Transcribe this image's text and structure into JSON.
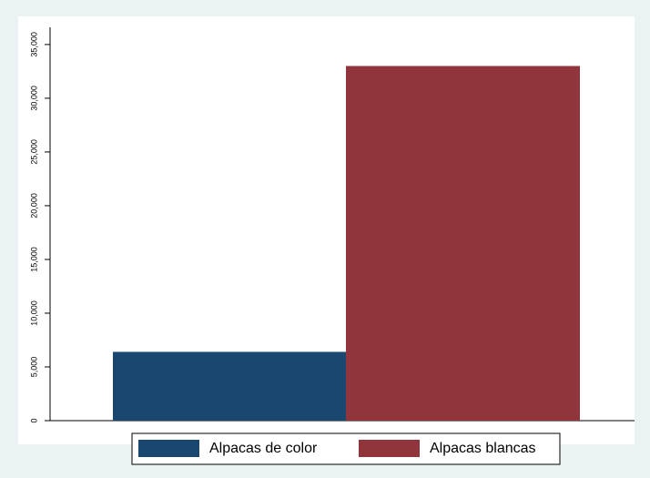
{
  "chart_data": {
    "type": "bar",
    "series": [
      {
        "name": "Alpacas de color",
        "color": "#1a476f",
        "values": [
          6400
        ]
      },
      {
        "name": "Alpacas blancas",
        "color": "#90353b",
        "values": [
          33000
        ]
      }
    ],
    "ylim": [
      0,
      36600
    ],
    "yticks": [
      0,
      {
        "value": 5000,
        "label": "5,000"
      },
      {
        "value": 10000,
        "label": "10,000"
      },
      {
        "value": 15000,
        "label": "15,000"
      },
      {
        "value": 20000,
        "label": "20,000"
      },
      {
        "value": 25000,
        "label": "25,000"
      },
      {
        "value": 30000,
        "label": "30,000"
      },
      {
        "value": 35000,
        "label": "35,000"
      }
    ],
    "legend": "bottom"
  }
}
